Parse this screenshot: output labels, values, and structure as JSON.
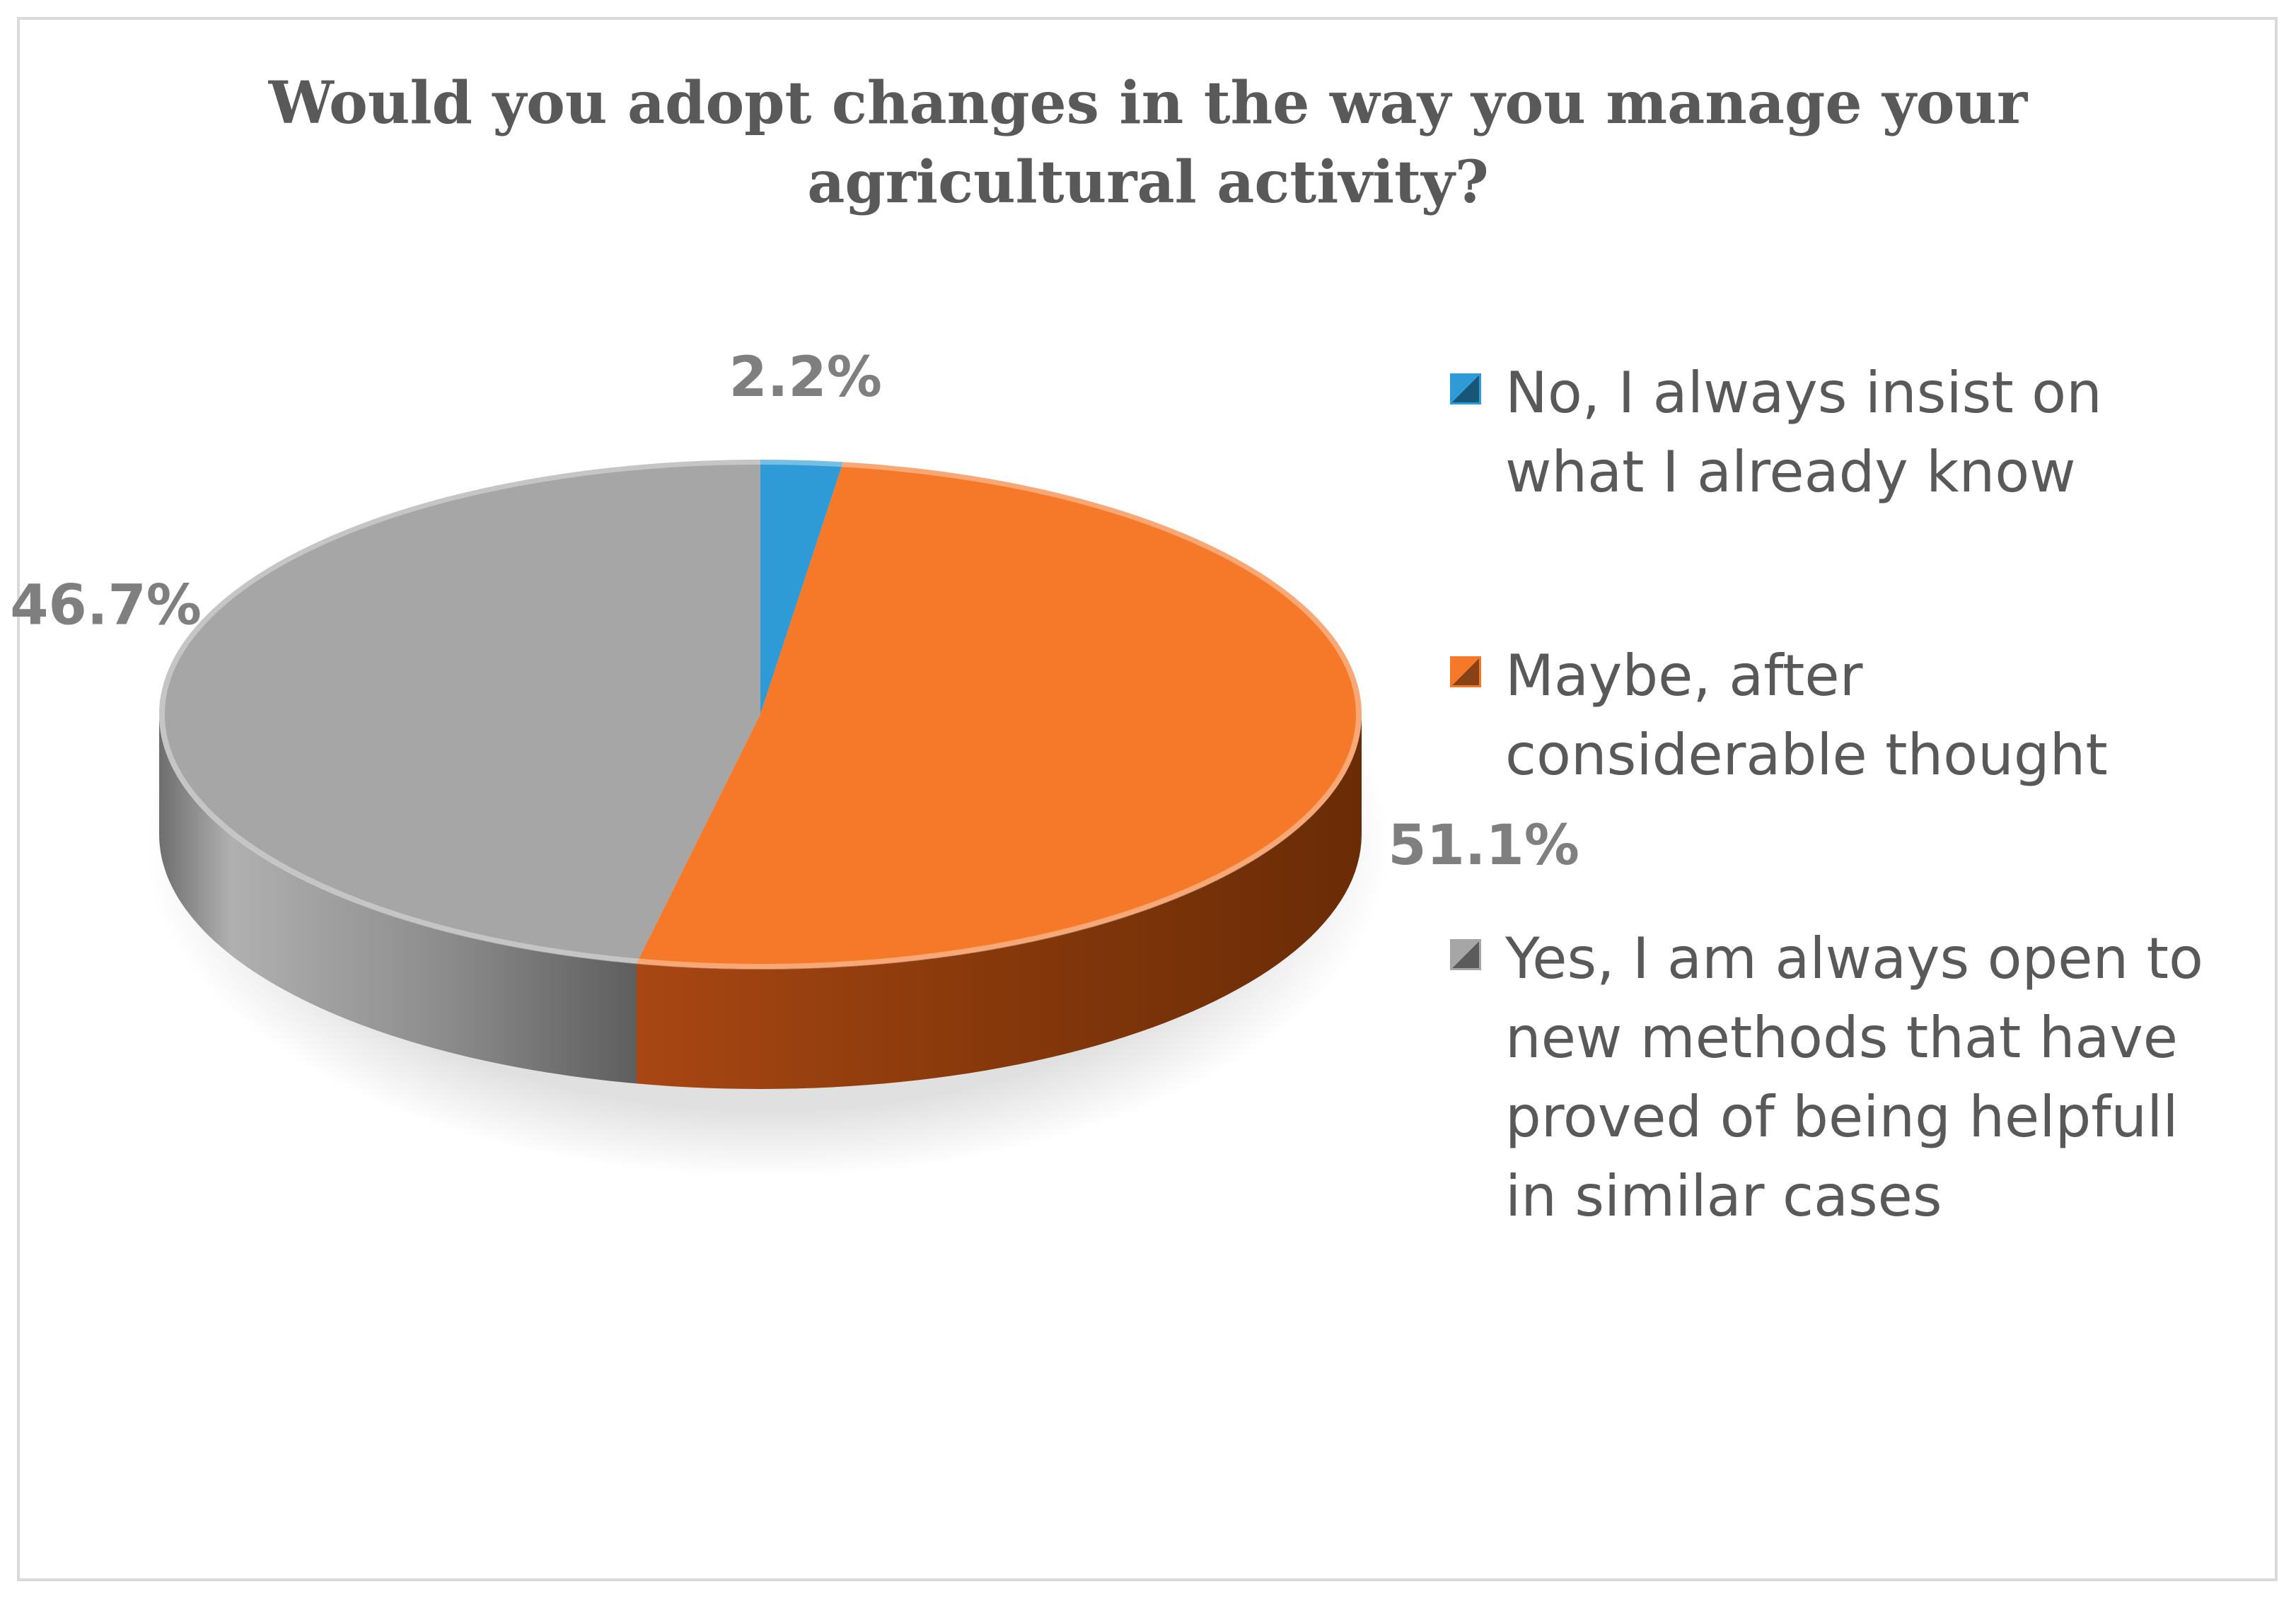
{
  "chart_data": {
    "type": "pie",
    "title": "Would you adopt changes in the way you manage your agricultural activity?",
    "title_lines": [
      "Would you adopt changes in the way you manage your",
      "agricultural activity?"
    ],
    "categories": [
      "No, I always insist on what I already know",
      "Maybe, after considerable thought",
      "Yes, I am always open to new methods that have proved of being helpfull in similar cases"
    ],
    "legend_lines": [
      [
        "No, I always insist on",
        "what I already know"
      ],
      [
        "Maybe, after",
        "considerable thought"
      ],
      [
        "Yes, I am always open to",
        "new methods that have",
        "proved of being helpfull",
        "in similar cases"
      ]
    ],
    "values": [
      2.2,
      51.1,
      46.7
    ],
    "labels": [
      "2.2%",
      "51.1%",
      "46.7%"
    ],
    "colors": [
      "#2e9bd6",
      "#f6792a",
      "#a6a6a6"
    ],
    "legend_position": "right",
    "style": "3d"
  }
}
